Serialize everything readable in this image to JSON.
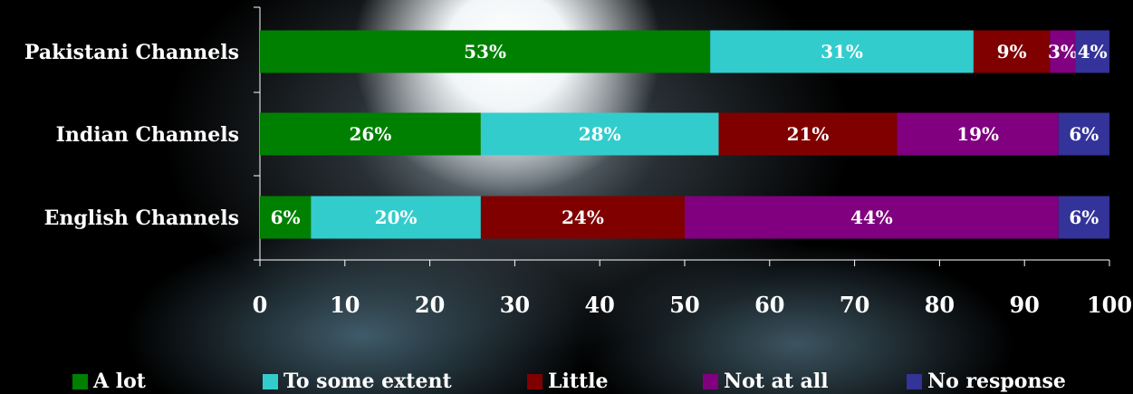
{
  "chart_data": {
    "type": "bar",
    "orientation": "horizontal",
    "stacked": true,
    "categories": [
      "Pakistani Channels",
      "Indian Channels",
      "English Channels"
    ],
    "series": [
      {
        "name": "A lot",
        "color": "#008000",
        "values": [
          53,
          26,
          6
        ],
        "labels": [
          "53%",
          "26%",
          "6%"
        ]
      },
      {
        "name": "To some extent",
        "color": "#33CCCC",
        "values": [
          31,
          28,
          20
        ],
        "labels": [
          "31%",
          "28%",
          "20%"
        ]
      },
      {
        "name": "Little",
        "color": "#800000",
        "values": [
          9,
          21,
          24
        ],
        "labels": [
          "9%",
          "21%",
          "24%"
        ]
      },
      {
        "name": "Not at all",
        "color": "#800080",
        "values": [
          3,
          19,
          44
        ],
        "labels": [
          "3%",
          "19%",
          "44%"
        ]
      },
      {
        "name": "No response",
        "color": "#333399",
        "values": [
          4,
          6,
          6
        ],
        "labels": [
          "4%",
          "6%",
          "6%"
        ]
      }
    ],
    "xlim": [
      0,
      100
    ],
    "xticks": [
      "0",
      "10",
      "20",
      "30",
      "40",
      "50",
      "60",
      "70",
      "80",
      "90",
      "100"
    ],
    "legend_position": "bottom",
    "grid": false
  }
}
